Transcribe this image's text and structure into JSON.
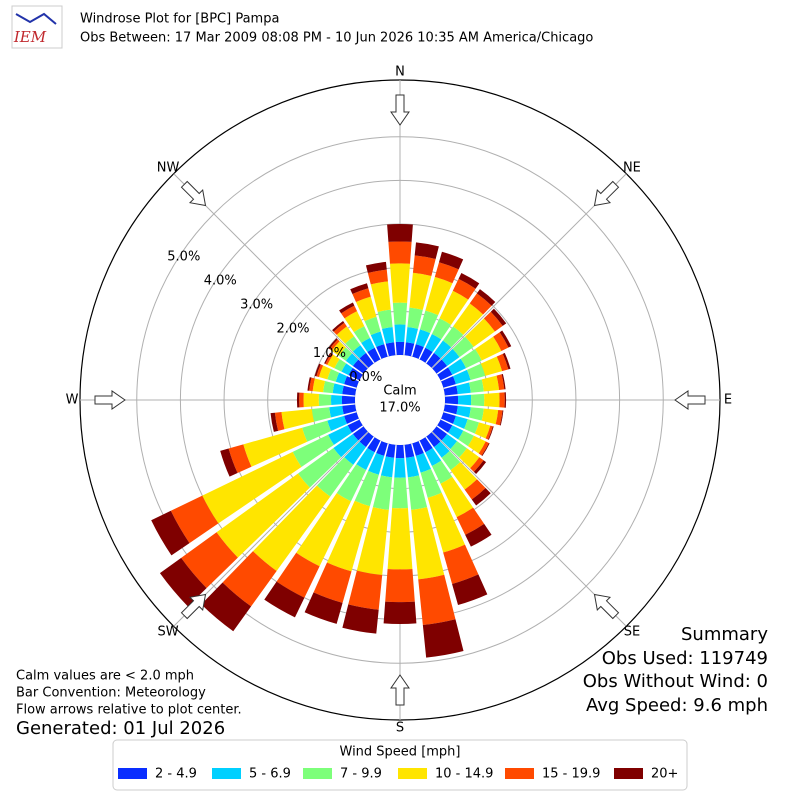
{
  "chart_data": {
    "type": "windrose",
    "logo_text": "IEM",
    "title": "Windrose Plot for [BPC] Pampa",
    "subtitle": "Obs Between: 17 Mar 2009 08:08 PM - 10 Jun 2026 10:35 AM America/Chicago",
    "compass_labels": [
      "N",
      "NE",
      "E",
      "SE",
      "S",
      "SW",
      "W",
      "NW"
    ],
    "calm": {
      "label": "Calm",
      "value": 17.0,
      "value_label": "17.0%"
    },
    "rlim": [
      0,
      6.3
    ],
    "rticks": [
      {
        "value": 0,
        "label": "0.0%"
      },
      {
        "value": 1,
        "label": "1.0%"
      },
      {
        "value": 2,
        "label": "2.0%"
      },
      {
        "value": 3,
        "label": "3.0%"
      },
      {
        "value": 4,
        "label": "4.0%"
      },
      {
        "value": 5,
        "label": "5.0%"
      }
    ],
    "grid": true,
    "legend_title": "Wind Speed [mph]",
    "legend_position": "bottom",
    "series": [
      {
        "name": "2 - 4.9",
        "color": "#0a2eff",
        "values": [
          0.3,
          0.3,
          0.3,
          0.3,
          0.3,
          0.3,
          0.3,
          0.3,
          0.3,
          0.3,
          0.3,
          0.3,
          0.3,
          0.3,
          0.3,
          0.3,
          0.3,
          0.3,
          0.3,
          0.3,
          0.3,
          0.3,
          0.3,
          0.3,
          0.3,
          0.3,
          0.3,
          0.3,
          0.3,
          0.3,
          0.28,
          0.3,
          0.3,
          0.3,
          0.3,
          0.3
        ]
      },
      {
        "name": "5 - 6.9",
        "color": "#00d0ff",
        "values": [
          0.4,
          0.35,
          0.35,
          0.35,
          0.35,
          0.35,
          0.35,
          0.35,
          0.3,
          0.3,
          0.3,
          0.28,
          0.28,
          0.28,
          0.3,
          0.35,
          0.4,
          0.45,
          0.45,
          0.45,
          0.45,
          0.45,
          0.5,
          0.55,
          0.5,
          0.4,
          0.3,
          0.25,
          0.22,
          0.2,
          0.18,
          0.2,
          0.22,
          0.25,
          0.3,
          0.35
        ]
      },
      {
        "name": "7 - 9.9",
        "color": "#7dff7a",
        "values": [
          0.5,
          0.45,
          0.45,
          0.4,
          0.4,
          0.4,
          0.4,
          0.35,
          0.3,
          0.3,
          0.3,
          0.27,
          0.27,
          0.28,
          0.35,
          0.45,
          0.6,
          0.75,
          0.7,
          0.75,
          0.75,
          0.8,
          0.9,
          1.0,
          0.9,
          0.6,
          0.4,
          0.28,
          0.22,
          0.2,
          0.18,
          0.2,
          0.25,
          0.3,
          0.35,
          0.4
        ]
      },
      {
        "name": "10 - 14.9",
        "color": "#ffe500",
        "values": [
          0.9,
          0.8,
          0.8,
          0.7,
          0.65,
          0.6,
          0.5,
          0.4,
          0.35,
          0.35,
          0.33,
          0.27,
          0.3,
          0.35,
          0.55,
          0.85,
          1.3,
          1.6,
          1.4,
          1.5,
          1.55,
          1.65,
          2.1,
          2.3,
          2.3,
          1.4,
          0.7,
          0.35,
          0.24,
          0.2,
          0.18,
          0.2,
          0.28,
          0.38,
          0.48,
          0.65
        ]
      },
      {
        "name": "15 - 19.9",
        "color": "#ff4a00",
        "values": [
          0.5,
          0.4,
          0.35,
          0.3,
          0.28,
          0.22,
          0.18,
          0.15,
          0.12,
          0.12,
          0.1,
          0.06,
          0.08,
          0.12,
          0.28,
          0.45,
          0.75,
          1.05,
          0.75,
          0.8,
          0.75,
          0.8,
          1.0,
          1.0,
          0.8,
          0.35,
          0.15,
          0.1,
          0.08,
          0.06,
          0.05,
          0.06,
          0.1,
          0.14,
          0.2,
          0.27
        ]
      },
      {
        "name": "20+",
        "color": "#7f0000",
        "values": [
          0.4,
          0.3,
          0.25,
          0.15,
          0.12,
          0.1,
          0.07,
          0.05,
          0.03,
          0.03,
          0.02,
          0.02,
          0.02,
          0.07,
          0.17,
          0.3,
          0.5,
          0.75,
          0.5,
          0.55,
          0.5,
          0.5,
          0.7,
          0.6,
          0.5,
          0.2,
          0.1,
          0.05,
          0.04,
          0.04,
          0.03,
          0.04,
          0.05,
          0.08,
          0.12,
          0.18
        ]
      }
    ],
    "notes": [
      "Calm values are < 2.0 mph",
      "Bar Convention: Meteorology",
      "Flow arrows relative to plot center."
    ],
    "generated": "Generated: 01 Jul 2026",
    "summary": [
      "Summary",
      "Obs Used: 119749",
      "Obs Without Wind: 0",
      "Avg Speed: 9.6 mph"
    ]
  }
}
